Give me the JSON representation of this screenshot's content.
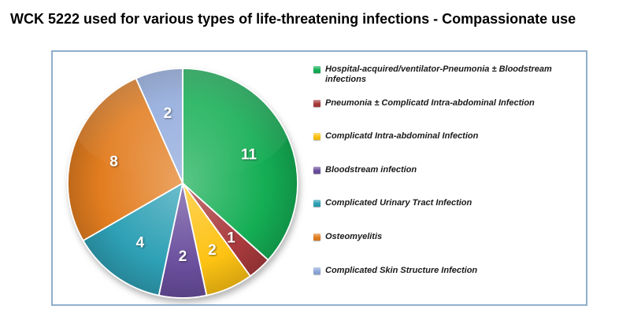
{
  "page": {
    "title": "WCK 5222 used for various types of life-threatening infections - Compassionate use"
  },
  "chart_data": {
    "type": "pie",
    "title": "WCK 5222 used for various types of life-threatening infections - Compassionate use",
    "categories": [
      "Hospital-acquired/ventilator-Pneumonia ± Bloodstream infections",
      "Pneumonia ± Complicatd Intra-abdominal Infection",
      "Complicatd Intra-abdominal Infection",
      "Bloodstream infection",
      "Complicated Urinary Tract Infection",
      "Osteomyelitis",
      "Complicated Skin Structure Infection"
    ],
    "values": [
      11,
      1,
      2,
      2,
      4,
      8,
      2
    ],
    "total": 30,
    "colors": [
      "#14AE54",
      "#A93A3D",
      "#FDC213",
      "#6A4F9D",
      "#2EA0B5",
      "#E27D20",
      "#8EA8DB"
    ],
    "data_label_color": "#ffffff",
    "data_labels": "values",
    "start_angle_deg": 0,
    "direction": "clockwise",
    "legend_position": "right",
    "frame_border_color": "#8FAECB",
    "background_color": "#ffffff"
  }
}
